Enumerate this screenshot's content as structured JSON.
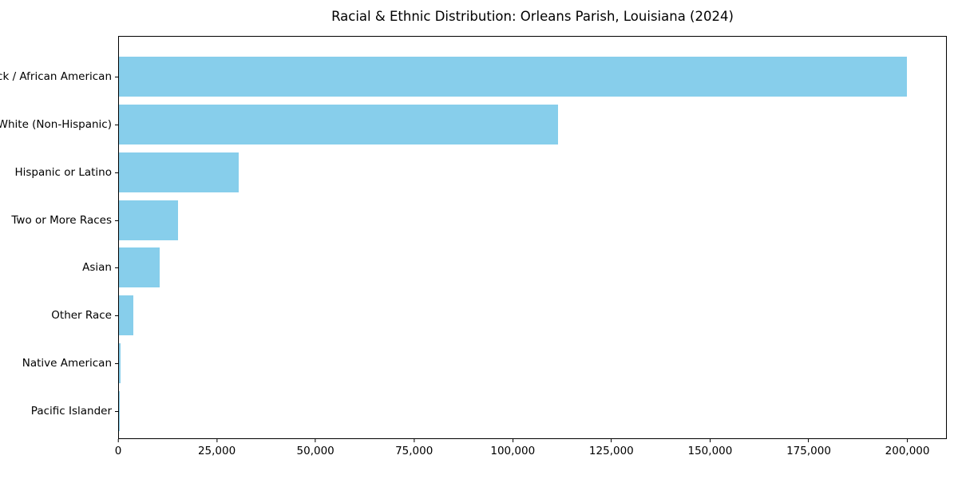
{
  "colors": {
    "bar": "#87CEEB",
    "background": "#ffffff",
    "text": "#000000",
    "axis": "#000000"
  },
  "chart_data": {
    "type": "bar",
    "orientation": "horizontal",
    "title": "Racial & Ethnic Distribution: Orleans Parish, Louisiana (2024)",
    "categories": [
      "Black / African American",
      "White (Non-Hispanic)",
      "Hispanic or Latino",
      "Two or More Races",
      "Asian",
      "Other Race",
      "Native American",
      "Pacific Islander"
    ],
    "values": [
      200000,
      111500,
      30400,
      15000,
      10300,
      3700,
      500,
      150
    ],
    "xlabel": "",
    "ylabel": "",
    "xlim": [
      0,
      210000
    ],
    "x_ticks": [
      {
        "value": 0,
        "label": "0"
      },
      {
        "value": 25000,
        "label": "25,000"
      },
      {
        "value": 50000,
        "label": "50,000"
      },
      {
        "value": 75000,
        "label": "75,000"
      },
      {
        "value": 100000,
        "label": "100,000"
      },
      {
        "value": 125000,
        "label": "125,000"
      },
      {
        "value": 150000,
        "label": "150,000"
      },
      {
        "value": 175000,
        "label": "175,000"
      },
      {
        "value": 200000,
        "label": "200,000"
      }
    ],
    "grid": false,
    "legend": "none"
  }
}
